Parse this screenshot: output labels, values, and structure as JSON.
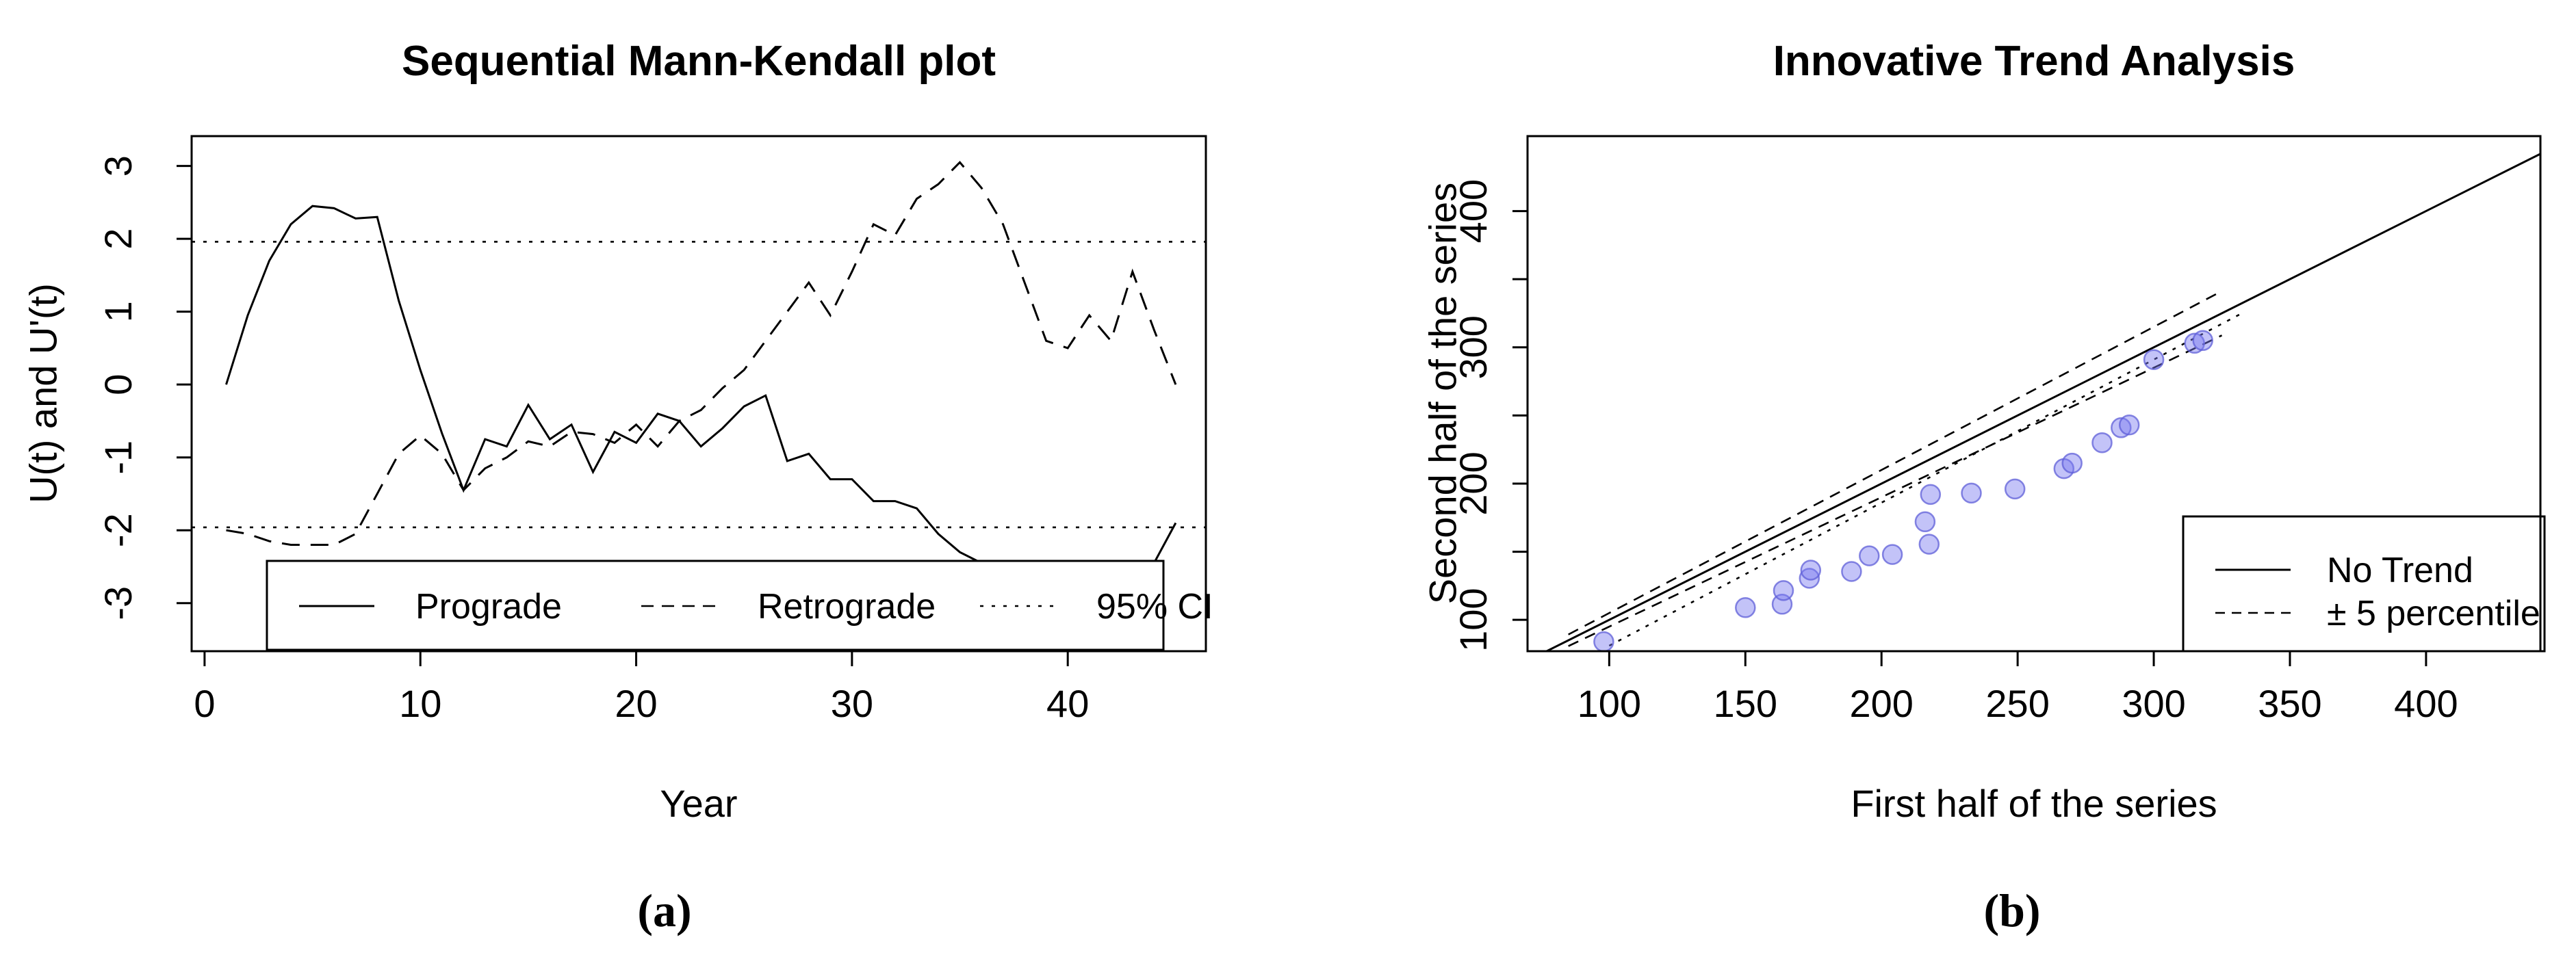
{
  "figure": {
    "captions": {
      "a": "(a)",
      "b": "(b)"
    }
  },
  "chart_data": [
    {
      "type": "line",
      "panel": "a",
      "title": "Sequential Mann-Kendall plot",
      "xlabel": "Year",
      "ylabel": "U(t) and U'(t)",
      "xlim": [
        -0.6,
        46.4
      ],
      "ylim": [
        -3.66,
        3.41
      ],
      "xticks": [
        0,
        10,
        20,
        30,
        40
      ],
      "yticks": [
        -3,
        -2,
        -1,
        0,
        1,
        2,
        3
      ],
      "grid": false,
      "ci_level": "95%",
      "ci_lines": [
        1.96,
        -1.96
      ],
      "x": [
        1,
        2,
        3,
        4,
        5,
        6,
        7,
        8,
        9,
        10,
        11,
        12,
        13,
        14,
        15,
        16,
        17,
        18,
        19,
        20,
        21,
        22,
        23,
        24,
        25,
        26,
        27,
        28,
        29,
        30,
        31,
        32,
        33,
        34,
        35,
        36,
        37,
        38,
        39,
        40,
        41,
        42,
        43,
        44,
        45
      ],
      "series": [
        {
          "name": "Prograde",
          "style": "solid",
          "values": [
            0,
            0.95,
            1.7,
            2.2,
            2.45,
            2.42,
            2.28,
            2.3,
            1.15,
            0.2,
            -0.67,
            -1.45,
            -0.75,
            -0.85,
            -0.28,
            -0.75,
            -0.55,
            -1.2,
            -0.65,
            -0.8,
            -0.4,
            -0.5,
            -0.85,
            -0.6,
            -0.3,
            -0.15,
            -1.05,
            -0.95,
            -1.3,
            -1.3,
            -1.6,
            -1.6,
            -1.7,
            -2.05,
            -2.3,
            -2.45,
            -2.45,
            -2.45,
            -2.45,
            -2.45,
            -2.45,
            -2.45,
            -2.45,
            -2.45,
            -1.9
          ]
        },
        {
          "name": "Retrograde",
          "style": "dashed",
          "values": [
            -2.0,
            -2.05,
            -2.15,
            -2.2,
            -2.2,
            -2.2,
            -2.05,
            -1.5,
            -0.95,
            -0.7,
            -0.95,
            -1.45,
            -1.15,
            -1.0,
            -0.78,
            -0.85,
            -0.65,
            -0.68,
            -0.8,
            -0.55,
            -0.85,
            -0.5,
            -0.35,
            -0.05,
            0.2,
            0.6,
            1.0,
            1.4,
            0.95,
            1.55,
            2.2,
            2.05,
            2.55,
            2.75,
            3.05,
            2.7,
            2.2,
            1.4,
            0.6,
            0.5,
            0.95,
            0.6,
            1.55,
            0.75,
            0.0
          ]
        }
      ],
      "legend": {
        "position": "bottom-inside",
        "entries": [
          {
            "label": "Prograde",
            "style": "solid"
          },
          {
            "label": "Retrograde",
            "style": "dashed"
          },
          {
            "label": "95% CI",
            "style": "dotted"
          }
        ]
      }
    },
    {
      "type": "scatter",
      "panel": "b",
      "title": "Innovative Trend Analysis",
      "xlabel": "First half of the series",
      "ylabel": "Second half of the series",
      "xlim": [
        70,
        442
      ],
      "ylim": [
        77,
        455
      ],
      "xticks": [
        100,
        150,
        200,
        250,
        300,
        350,
        400
      ],
      "xtick_labels": [
        "100",
        "150",
        "200",
        "250",
        "300",
        "350",
        "400"
      ],
      "yticks": [
        100,
        150,
        200,
        250,
        300,
        350,
        400
      ],
      "ytick_labels": [
        "100",
        "",
        "200",
        "",
        "300",
        "",
        "400"
      ],
      "grid": false,
      "point_color": "#7b7bf0",
      "point_edge": "#5f5fd8",
      "points": [
        [
          98,
          84
        ],
        [
          150,
          109
        ],
        [
          163.5,
          111.5
        ],
        [
          164,
          121.5
        ],
        [
          173.5,
          130.5
        ],
        [
          174,
          136.5
        ],
        [
          189,
          135.5
        ],
        [
          195.5,
          147
        ],
        [
          204,
          148
        ],
        [
          217.5,
          155.5
        ],
        [
          216,
          172
        ],
        [
          218,
          192
        ],
        [
          233,
          193
        ],
        [
          249,
          196
        ],
        [
          267,
          211
        ],
        [
          270,
          215
        ],
        [
          281,
          230
        ],
        [
          288,
          241
        ],
        [
          291,
          243
        ],
        [
          300,
          291
        ],
        [
          315,
          303
        ],
        [
          318,
          305
        ]
      ],
      "lines": [
        {
          "name": "No Trend",
          "style": "solid",
          "slope": 1,
          "intercept": 0,
          "range": [
            70,
            445
          ]
        },
        {
          "name": "+5 percentile",
          "style": "dashed",
          "slope": 1.05,
          "intercept": 0,
          "range": [
            85,
            325
          ]
        },
        {
          "name": "-5 percentile",
          "style": "dashed",
          "slope": 0.95,
          "intercept": 0,
          "range": [
            85,
            325
          ]
        },
        {
          "name": "data trend line",
          "style": "dotted",
          "slope": 1.05,
          "intercept": -24,
          "range": [
            100,
            332
          ]
        }
      ],
      "legend": {
        "position": "bottom-right-inside",
        "entries": [
          {
            "label": "No Trend",
            "style": "solid"
          },
          {
            "label": "± 5 percentile",
            "style": "dashed"
          }
        ]
      }
    }
  ]
}
